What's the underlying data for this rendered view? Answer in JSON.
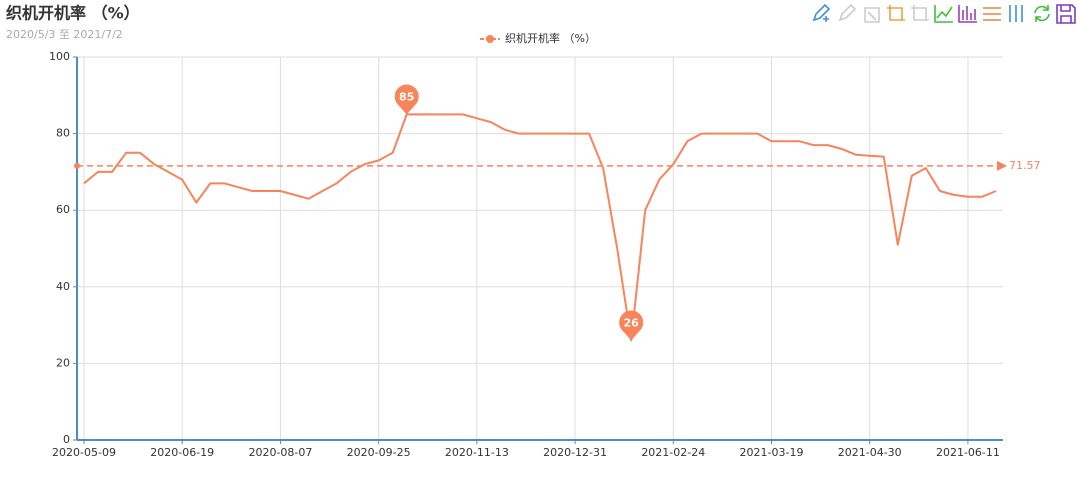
{
  "chart_data": {
    "type": "line",
    "title": "织机开机率 （%）",
    "subtitle": "2020/5/3 至 2021/7/2",
    "categories": [
      "2020-05-09",
      null,
      null,
      null,
      null,
      null,
      null,
      "2020-06-19",
      null,
      null,
      null,
      null,
      null,
      null,
      "2020-08-07",
      null,
      null,
      null,
      null,
      null,
      null,
      "2020-09-25",
      null,
      null,
      null,
      null,
      null,
      null,
      "2020-11-13",
      null,
      null,
      null,
      null,
      null,
      null,
      "2020-12-31",
      null,
      null,
      null,
      null,
      null,
      null,
      "2021-02-24",
      null,
      null,
      null,
      null,
      null,
      null,
      "2021-03-19",
      null,
      null,
      null,
      null,
      null,
      null,
      "2021-04-30",
      null,
      null,
      null,
      null,
      null,
      null,
      "2021-06-11",
      null,
      null
    ],
    "series": [
      {
        "name": "织机开机率 （%）",
        "color": "#f7845a",
        "values": [
          67,
          70,
          70,
          75,
          75,
          72,
          70,
          68,
          62,
          67,
          67,
          66,
          65,
          65,
          65,
          64,
          63,
          65,
          67,
          70,
          72,
          73,
          75,
          85,
          85,
          85,
          85,
          85,
          84,
          83,
          81,
          80,
          80,
          80,
          80,
          80,
          80,
          71,
          50,
          26,
          60,
          68,
          72,
          78,
          80,
          80,
          80,
          80,
          80,
          78,
          78,
          78,
          77,
          77,
          76,
          74.5,
          74.2,
          74,
          51,
          69,
          71,
          65,
          64,
          63.5,
          63.5,
          65
        ]
      }
    ],
    "average": 71.57,
    "ylim": [
      0,
      100
    ],
    "yticks": [
      0,
      20,
      40,
      60,
      80,
      100
    ],
    "grid": true
  }
}
